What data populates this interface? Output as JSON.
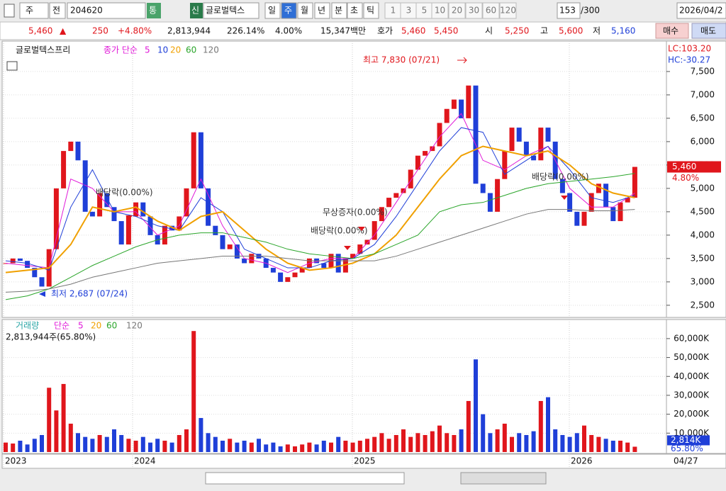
{
  "toolbar": {
    "market": "주",
    "prev": "전",
    "code": "204620",
    "t1": "통",
    "t2": "신",
    "name": "글로벌텍스",
    "periods": [
      "일",
      "주",
      "월",
      "년",
      "분",
      "초",
      "틱"
    ],
    "selected_period": 1,
    "spans": [
      "1",
      "3",
      "5",
      "10",
      "20",
      "30",
      "60",
      "120"
    ],
    "count": "153",
    "total": "/300",
    "date": "2026/04/2"
  },
  "quote": {
    "price": "5,460",
    "arrow": "▲",
    "change": "250",
    "rate": "+4.80%",
    "volume": "2,813,944",
    "vol_ratio": "226.14%",
    "turnover": "4.00%",
    "amount": "15,347백만",
    "hoga": "호가",
    "ask": "5,460",
    "bid": "5,450",
    "open_l": "시",
    "open": "5,250",
    "high_l": "고",
    "high": "5,600",
    "low_l": "저",
    "low": "5,160",
    "buy": "매수",
    "sell": "매도"
  },
  "chart_data": {
    "type": "candlestick",
    "stock": "글로벌텍스프리",
    "legend_head": "종가 단순",
    "lc": "LC:103.20",
    "hc": "HC:-30.27",
    "up_color": "#e0161c",
    "down_color": "#1f3fd8",
    "ylim": [
      2240,
      8090
    ],
    "yticks": [
      {
        "value": 2500,
        "label": "2,500"
      },
      {
        "value": 3000,
        "label": "3,000"
      },
      {
        "value": 3500,
        "label": "3,500"
      },
      {
        "value": 4000,
        "label": "4,000"
      },
      {
        "value": 4500,
        "label": "4,500"
      },
      {
        "value": 5000,
        "label": "5,000"
      },
      {
        "value": 5500,
        "label": "5,500"
      },
      {
        "value": 6000,
        "label": "6,000"
      },
      {
        "value": 6500,
        "label": "6,500"
      },
      {
        "value": 7000,
        "label": "7,000"
      },
      {
        "value": 7500,
        "label": "7,500"
      }
    ],
    "last": {
      "value": 5460,
      "label": "5,460",
      "rate": "4.80%"
    },
    "close": [
      3400,
      3500,
      3450,
      3300,
      3100,
      2900,
      3700,
      5000,
      5800,
      6000,
      5600,
      4500,
      4400,
      4900,
      4600,
      4300,
      3800,
      4400,
      4700,
      4400,
      4000,
      3800,
      4200,
      4100,
      4400,
      5000,
      6200,
      5000,
      4200,
      4000,
      3700,
      3800,
      3500,
      3400,
      3600,
      3500,
      3300,
      3200,
      3000,
      3100,
      3200,
      3300,
      3500,
      3400,
      3300,
      3600,
      3200,
      3500,
      3600,
      3800,
      3900,
      4300,
      4600,
      4800,
      4900,
      5000,
      5400,
      5700,
      5800,
      5900,
      6400,
      6700,
      6900,
      6500,
      7200,
      5100,
      4900,
      4500,
      5200,
      5800,
      6300,
      6000,
      5700,
      5600,
      6300,
      6000,
      5200,
      4900,
      4500,
      4200,
      4500,
      4900,
      5100,
      4600,
      4300,
      4700,
      4800,
      5460
    ],
    "ma_step": 3,
    "ma": [
      {
        "name": "5",
        "color": "#e01ad8",
        "values": [
          3400,
          3350,
          3300,
          5200,
          5000,
          4500,
          4500,
          4000,
          4200,
          5200,
          4200,
          3500,
          3400,
          3200,
          3400,
          3500,
          3500,
          4000,
          4700,
          5400,
          6100,
          6600,
          5600,
          5400,
          5700,
          5900,
          5000,
          4600,
          4600,
          4900
        ]
      },
      {
        "name": "10",
        "color": "#1f3fd8",
        "values": [
          3450,
          3400,
          3250,
          4600,
          5400,
          4500,
          4400,
          4200,
          4100,
          4800,
          4500,
          3700,
          3500,
          3300,
          3300,
          3450,
          3500,
          3800,
          4400,
          5100,
          5800,
          6300,
          6200,
          5300,
          5600,
          5900,
          5400,
          4800,
          4700,
          4850
        ]
      },
      {
        "name": "20",
        "color": "#f0a000",
        "values": [
          3200,
          3250,
          3300,
          3800,
          4600,
          4500,
          4600,
          4300,
          4100,
          4400,
          4500,
          4100,
          3700,
          3400,
          3250,
          3300,
          3400,
          3600,
          4000,
          4600,
          5200,
          5700,
          5900,
          5800,
          5700,
          5800,
          5500,
          5100,
          4900,
          4800
        ]
      },
      {
        "name": "60",
        "color": "#2aa52a",
        "values": [
          2620,
          2700,
          2850,
          3100,
          3350,
          3550,
          3750,
          3900,
          4000,
          4050,
          4050,
          3950,
          3850,
          3700,
          3600,
          3550,
          3500,
          3600,
          3800,
          4000,
          4500,
          4650,
          4700,
          4850,
          5000,
          5100,
          5150,
          5200,
          5250,
          5320
        ]
      },
      {
        "name": "120",
        "color": "#777777",
        "values": [
          2780,
          2800,
          2850,
          2950,
          3100,
          3200,
          3300,
          3400,
          3450,
          3500,
          3550,
          3550,
          3550,
          3500,
          3450,
          3450,
          3450,
          3450,
          3550,
          3700,
          3850,
          4000,
          4150,
          4300,
          4450,
          4550,
          4550,
          4520,
          4520,
          4550
        ]
      }
    ],
    "annotations": [
      "최고 7,830 (07/21)",
      "최저 2,687 (07/24)",
      "배당락(0.00%)",
      "배당락(0.00%)",
      "무상증자(0.00%)",
      "배당락(0.00%)"
    ],
    "volume": {
      "head": "거래량",
      "legend_head": "단순",
      "ma_names": [
        "5",
        "20",
        "60",
        "120"
      ],
      "ma_colors": [
        "#e01ad8",
        "#f0a000",
        "#2aa52a",
        "#777777"
      ],
      "info": "2,813,944주(65.80%)",
      "ylim": [
        0,
        69700
      ],
      "yticks": [
        {
          "value": 10000,
          "label": "10,000K"
        },
        {
          "value": 20000,
          "label": "20,000K"
        },
        {
          "value": 30000,
          "label": "30,000K"
        },
        {
          "value": 40000,
          "label": "40,000K"
        },
        {
          "value": 50000,
          "label": "50,000K"
        },
        {
          "value": 60000,
          "label": "60,000K"
        }
      ],
      "last": {
        "value": 2814,
        "label": "2,814K",
        "rate": "65.80%"
      },
      "values": [
        5000,
        4500,
        6000,
        4000,
        7000,
        9000,
        34000,
        22000,
        36000,
        15000,
        10000,
        8000,
        7000,
        9000,
        8000,
        12000,
        9000,
        7000,
        6000,
        8000,
        5000,
        7000,
        6000,
        5000,
        9000,
        12000,
        64000,
        18000,
        10000,
        8000,
        6000,
        7000,
        5000,
        6000,
        5000,
        7000,
        4000,
        5000,
        3000,
        4000,
        3000,
        4000,
        5000,
        4000,
        6000,
        5000,
        8000,
        6000,
        5000,
        6000,
        7000,
        8000,
        10000,
        7000,
        9000,
        12000,
        8000,
        10000,
        9000,
        11000,
        14000,
        10000,
        9000,
        12000,
        27000,
        49000,
        20000,
        10000,
        12000,
        15000,
        8000,
        10000,
        9000,
        11000,
        27000,
        29000,
        12000,
        9000,
        8000,
        10000,
        14000,
        9000,
        8000,
        7000,
        6000,
        6000,
        5000,
        2814
      ]
    },
    "x_labels": [
      "2023",
      "2024",
      "2025",
      "2026"
    ],
    "x_end": "04/27"
  }
}
